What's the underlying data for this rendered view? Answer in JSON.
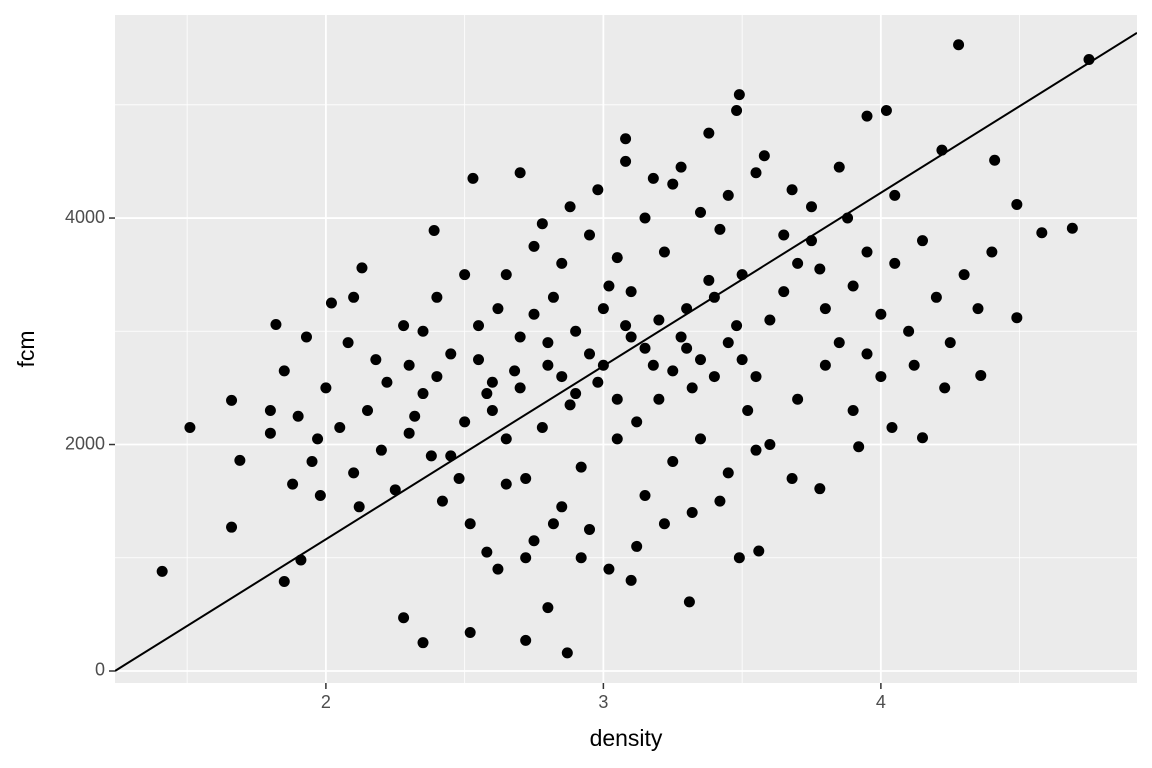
{
  "chart_data": {
    "type": "scatter",
    "x_label": "density",
    "y_label": "fcm",
    "xlim": [
      1.24,
      4.923
    ],
    "ylim": [
      -106,
      5793
    ],
    "xticks": [
      2,
      3,
      4
    ],
    "yticks": [
      0,
      2000,
      4000
    ],
    "xminor": [
      1.5,
      2.5,
      3.5,
      4.5
    ],
    "yminor": [
      1000,
      3000,
      5000
    ],
    "grid": true,
    "color": "#000000",
    "line": {
      "intercept": -1897,
      "slope": 1530,
      "color": "#000000"
    },
    "x": [
      1.41,
      1.51,
      1.66,
      1.66,
      1.69,
      1.85,
      1.91,
      2.28,
      2.35,
      2.52,
      2.72,
      2.8,
      2.87,
      3.31,
      3.49,
      3.08,
      3.95,
      4.02,
      4.28,
      4.75,
      4.69,
      4.58,
      4.49,
      4.49,
      4.41,
      3.92,
      3.68,
      3.78,
      3.56,
      3.49,
      2.39,
      2.53,
      2.7,
      2.13,
      1.82,
      1.8,
      4.36,
      4.23,
      4.04,
      4.15,
      2.95,
      3.1,
      3.2,
      2.85,
      3.0,
      3.3,
      2.7,
      3.15,
      2.9,
      3.05,
      3.25,
      2.8,
      3.4,
      2.6,
      3.5,
      2.5,
      3.6,
      2.4,
      3.7,
      2.3,
      3.35,
      2.75,
      3.45,
      2.65,
      3.55,
      2.55,
      3.65,
      2.45,
      3.75,
      2.35,
      3.02,
      3.12,
      2.92,
      3.22,
      2.82,
      3.32,
      2.72,
      3.42,
      2.62,
      3.52,
      2.98,
      3.08,
      3.18,
      2.88,
      3.28,
      2.78,
      3.38,
      2.68,
      3.48,
      2.58,
      3.8,
      3.85,
      3.9,
      3.95,
      4.0,
      4.05,
      4.1,
      2.2,
      2.15,
      2.1,
      2.05,
      2.0,
      1.95,
      1.9,
      2.25,
      2.18,
      2.08,
      2.12,
      2.28,
      1.98,
      3.05,
      3.15,
      2.95,
      3.25,
      2.85,
      3.35,
      2.75,
      3.45,
      2.65,
      3.55,
      3.05,
      3.15,
      2.95,
      3.25,
      2.85,
      3.35,
      2.75,
      3.45,
      2.65,
      3.55,
      3.6,
      3.7,
      3.8,
      3.9,
      4.0,
      3.65,
      3.75,
      3.85,
      3.95,
      4.15,
      4.2,
      4.3,
      4.25,
      4.35,
      4.12,
      4.4,
      4.05,
      4.22,
      3.88,
      3.78,
      2.4,
      2.5,
      2.35,
      2.45,
      2.55,
      2.3,
      2.42,
      2.52,
      2.58,
      2.48,
      3.02,
      3.12,
      2.92,
      2.82,
      3.22,
      3.32,
      3.42,
      2.62,
      2.72,
      3.1,
      1.85,
      1.8,
      1.88,
      1.93,
      2.02,
      2.1,
      1.97,
      2.22,
      2.32,
      2.38,
      3.0,
      3.1,
      3.2,
      2.9,
      3.3,
      2.8,
      3.4,
      2.7,
      3.5,
      2.6,
      3.28,
      3.38,
      3.48,
      3.18,
      2.98,
      2.88,
      2.78,
      3.58,
      3.68,
      3.08
    ],
    "values": [
      880,
      2150,
      2390,
      1270,
      1860,
      790,
      980,
      470,
      250,
      340,
      270,
      560,
      160,
      610,
      5090,
      4700,
      4900,
      4950,
      5530,
      5400,
      3910,
      3870,
      3120,
      4120,
      4510,
      1980,
      1700,
      1610,
      1060,
      1000,
      3890,
      4350,
      4400,
      3560,
      3060,
      2100,
      2610,
      2500,
      2150,
      2060,
      2800,
      2950,
      3100,
      2600,
      2700,
      3200,
      2500,
      2850,
      3000,
      2400,
      2650,
      2900,
      3300,
      2300,
      3500,
      2200,
      3100,
      2600,
      3600,
      2100,
      2750,
      3150,
      2900,
      2050,
      2600,
      2750,
      3350,
      1900,
      3800,
      2450,
      3400,
      2200,
      1800,
      3700,
      3300,
      2500,
      1700,
      3900,
      3200,
      2300,
      2550,
      3050,
      2700,
      2350,
      2950,
      2150,
      3450,
      2650,
      3050,
      2450,
      3200,
      2900,
      3400,
      2800,
      3150,
      3600,
      3000,
      1950,
      2300,
      1750,
      2150,
      2500,
      1850,
      2250,
      1600,
      2750,
      2900,
      1450,
      3050,
      1550,
      2050,
      1550,
      1250,
      1850,
      1450,
      2050,
      1150,
      1750,
      1650,
      1950,
      3650,
      4000,
      3850,
      4300,
      3600,
      4050,
      3750,
      4200,
      3500,
      4400,
      2000,
      2400,
      2700,
      2300,
      2600,
      3850,
      4100,
      4450,
      3700,
      3800,
      3300,
      3500,
      2900,
      3200,
      2700,
      3700,
      4200,
      4600,
      4000,
      3550,
      3300,
      3500,
      3000,
      2800,
      3050,
      2700,
      1500,
      1300,
      1050,
      1700,
      900,
      1100,
      1000,
      1300,
      1300,
      1400,
      1500,
      900,
      1000,
      800,
      2650,
      2300,
      1650,
      2950,
      3250,
      3300,
      2050,
      2550,
      2250,
      1900,
      3200,
      3350,
      2400,
      2450,
      2850,
      2700,
      2600,
      2950,
      2750,
      2550,
      4450,
      4750,
      4950,
      4350,
      4250,
      4100,
      3950,
      4550,
      4250,
      4500
    ]
  }
}
